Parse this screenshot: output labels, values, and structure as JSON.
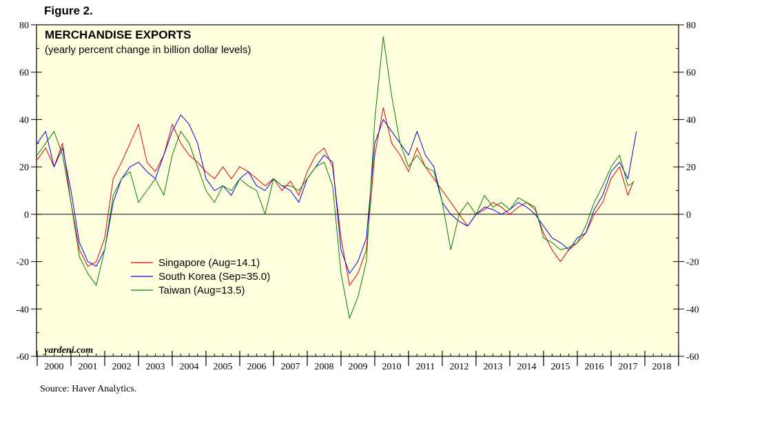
{
  "figure_label": "Figure 2.",
  "source": "Source: Haver Analytics.",
  "watermark": "yardeni.com",
  "chart_data": {
    "type": "line",
    "title": "MERCHANDISE EXPORTS",
    "subtitle": "(yearly percent change in billion dollar levels)",
    "xlabel": "",
    "ylabel": "",
    "xlim": [
      2000,
      2019
    ],
    "ylim": [
      -60,
      80
    ],
    "yticks": [
      -60,
      -40,
      -20,
      0,
      20,
      40,
      60,
      80
    ],
    "year_labels": [
      "2000",
      "2001",
      "2002",
      "2003",
      "2004",
      "2005",
      "2006",
      "2007",
      "2008",
      "2009",
      "2010",
      "2011",
      "2012",
      "2013",
      "2014",
      "2015",
      "2016",
      "2017",
      "2018"
    ],
    "grid": false,
    "zero_line": true,
    "legend_position": "lower-left",
    "background_color": "#ffffe0",
    "series": [
      {
        "name": "Singapore (Aug=14.1)",
        "color": "#e00000",
        "x": [
          2000.0,
          2000.25,
          2000.5,
          2000.75,
          2001.0,
          2001.25,
          2001.5,
          2001.75,
          2002.0,
          2002.25,
          2002.5,
          2002.75,
          2003.0,
          2003.25,
          2003.5,
          2003.75,
          2004.0,
          2004.25,
          2004.5,
          2004.75,
          2005.0,
          2005.25,
          2005.5,
          2005.75,
          2006.0,
          2006.25,
          2006.5,
          2006.75,
          2007.0,
          2007.25,
          2007.5,
          2007.75,
          2008.0,
          2008.25,
          2008.5,
          2008.75,
          2009.0,
          2009.25,
          2009.5,
          2009.75,
          2010.0,
          2010.25,
          2010.5,
          2010.75,
          2011.0,
          2011.25,
          2011.5,
          2011.75,
          2012.0,
          2012.25,
          2012.5,
          2012.75,
          2013.0,
          2013.25,
          2013.5,
          2013.75,
          2014.0,
          2014.25,
          2014.5,
          2014.75,
          2015.0,
          2015.25,
          2015.5,
          2015.75,
          2016.0,
          2016.25,
          2016.5,
          2016.75,
          2017.0,
          2017.25,
          2017.5,
          2017.67
        ],
        "values": [
          23,
          28,
          20,
          30,
          5,
          -15,
          -22,
          -20,
          -10,
          15,
          22,
          30,
          38,
          22,
          18,
          25,
          38,
          30,
          25,
          22,
          18,
          15,
          20,
          15,
          20,
          18,
          15,
          12,
          15,
          10,
          14,
          8,
          18,
          25,
          28,
          20,
          -10,
          -30,
          -25,
          -15,
          25,
          45,
          30,
          25,
          18,
          28,
          20,
          15,
          10,
          5,
          0,
          -5,
          0,
          2,
          5,
          3,
          0,
          3,
          5,
          2,
          -8,
          -15,
          -20,
          -15,
          -12,
          -8,
          0,
          5,
          15,
          20,
          8,
          14.1
        ]
      },
      {
        "name": "South Korea (Sep=35.0)",
        "color": "#0000e0",
        "x": [
          2000.0,
          2000.25,
          2000.5,
          2000.75,
          2001.0,
          2001.25,
          2001.5,
          2001.75,
          2002.0,
          2002.25,
          2002.5,
          2002.75,
          2003.0,
          2003.25,
          2003.5,
          2003.75,
          2004.0,
          2004.25,
          2004.5,
          2004.75,
          2005.0,
          2005.25,
          2005.5,
          2005.75,
          2006.0,
          2006.25,
          2006.5,
          2006.75,
          2007.0,
          2007.25,
          2007.5,
          2007.75,
          2008.0,
          2008.25,
          2008.5,
          2008.75,
          2009.0,
          2009.25,
          2009.5,
          2009.75,
          2010.0,
          2010.25,
          2010.5,
          2010.75,
          2011.0,
          2011.25,
          2011.5,
          2011.75,
          2012.0,
          2012.25,
          2012.5,
          2012.75,
          2013.0,
          2013.25,
          2013.5,
          2013.75,
          2014.0,
          2014.25,
          2014.5,
          2014.75,
          2015.0,
          2015.25,
          2015.5,
          2015.75,
          2016.0,
          2016.25,
          2016.5,
          2016.75,
          2017.0,
          2017.25,
          2017.5,
          2017.75
        ],
        "values": [
          30,
          35,
          20,
          28,
          10,
          -12,
          -20,
          -22,
          -15,
          5,
          15,
          20,
          22,
          18,
          15,
          25,
          35,
          42,
          38,
          30,
          15,
          10,
          12,
          8,
          15,
          18,
          12,
          10,
          15,
          12,
          10,
          5,
          15,
          20,
          25,
          22,
          -15,
          -25,
          -20,
          -10,
          30,
          40,
          35,
          30,
          25,
          35,
          25,
          20,
          5,
          0,
          -3,
          -5,
          0,
          3,
          2,
          0,
          2,
          5,
          3,
          0,
          -5,
          -10,
          -12,
          -15,
          -10,
          -8,
          2,
          8,
          18,
          22,
          15,
          35
        ]
      },
      {
        "name": "Taiwan (Aug=13.5)",
        "color": "#008000",
        "x": [
          2000.0,
          2000.25,
          2000.5,
          2000.75,
          2001.0,
          2001.25,
          2001.5,
          2001.75,
          2002.0,
          2002.25,
          2002.5,
          2002.75,
          2003.0,
          2003.25,
          2003.5,
          2003.75,
          2004.0,
          2004.25,
          2004.5,
          2004.75,
          2005.0,
          2005.25,
          2005.5,
          2005.75,
          2006.0,
          2006.25,
          2006.5,
          2006.75,
          2007.0,
          2007.25,
          2007.5,
          2007.75,
          2008.0,
          2008.25,
          2008.5,
          2008.75,
          2009.0,
          2009.25,
          2009.5,
          2009.75,
          2010.0,
          2010.25,
          2010.5,
          2010.75,
          2011.0,
          2011.25,
          2011.5,
          2011.75,
          2012.0,
          2012.25,
          2012.5,
          2012.75,
          2013.0,
          2013.25,
          2013.5,
          2013.75,
          2014.0,
          2014.25,
          2014.5,
          2014.75,
          2015.0,
          2015.25,
          2015.5,
          2015.75,
          2016.0,
          2016.25,
          2016.5,
          2016.75,
          2017.0,
          2017.25,
          2017.5,
          2017.67
        ],
        "values": [
          25,
          30,
          35,
          25,
          5,
          -18,
          -25,
          -30,
          -15,
          8,
          15,
          18,
          5,
          10,
          15,
          8,
          25,
          35,
          30,
          20,
          10,
          5,
          12,
          10,
          15,
          12,
          10,
          0,
          15,
          12,
          12,
          10,
          15,
          20,
          22,
          12,
          -25,
          -44,
          -35,
          -20,
          40,
          75,
          50,
          30,
          20,
          25,
          20,
          18,
          5,
          -15,
          0,
          5,
          0,
          8,
          3,
          5,
          2,
          7,
          5,
          3,
          -10,
          -12,
          -15,
          -14,
          -12,
          -5,
          5,
          12,
          20,
          25,
          12,
          13.5
        ]
      }
    ]
  }
}
